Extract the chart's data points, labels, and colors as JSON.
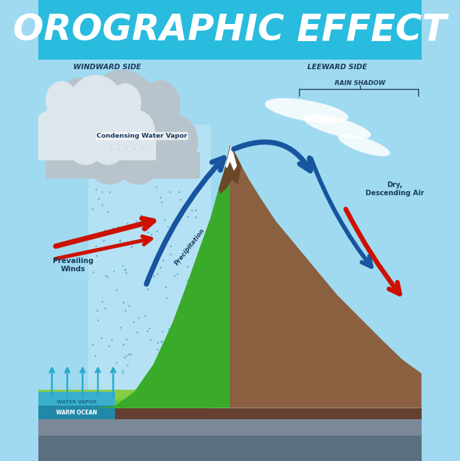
{
  "title": "OROGRAPHIC EFFECT",
  "title_color": "#FFFFFF",
  "title_bg_color": "#29BCDE",
  "title_fontsize": 38,
  "windward_label": "WINDWARD SIDE",
  "leeward_label": "LEEWARD SIDE",
  "rain_shadow_label": "RAIN SHADOW",
  "condensing_label": "Condensing Water Vapor",
  "precipitation_label": "Precipitation",
  "prevailing_winds_label": "Prevailing\nWinds",
  "water_vapor_label": "WATER VAPOR",
  "warm_ocean_label": "WARM OCEAN",
  "dry_descending_label": "Dry,\nDescending Air",
  "label_color": "#1a3a5c",
  "arrow_blue": "#1755a0",
  "arrow_red": "#cc1100",
  "mountain_green": "#3aaa2a",
  "mountain_brown": "#8B6040",
  "cloud_color": "#c8d4dc",
  "cloud_white": "#e8eef2",
  "ocean_color": "#3aafce",
  "ocean_dark": "#2288aa",
  "ground_green": "#5aaa2a",
  "sky_color": "#a0daf0",
  "sky_left": "#b0e4f8",
  "sky_right": "#c0ecff",
  "rain_color": "#7ab8d8",
  "leeward_ground": "#7a5030",
  "leeward_ground2": "#654030",
  "ground_stripe": "#88cc44"
}
